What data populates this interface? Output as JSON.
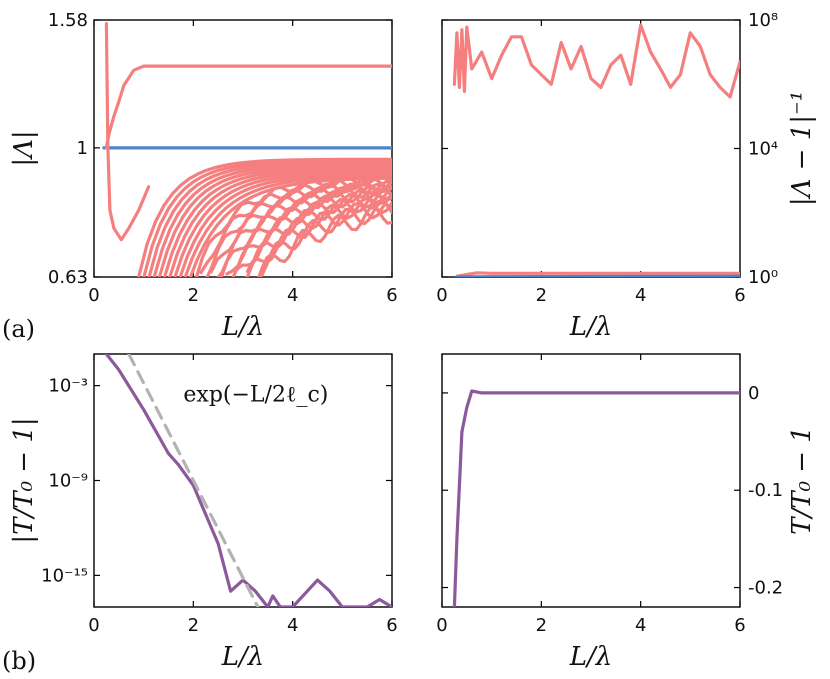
{
  "colors": {
    "red": "#F57F7F",
    "blue": "#4F83CC",
    "purple": "#8C5A9C",
    "gray": "#B3B3B3"
  },
  "labels": {
    "panel_a": "(a)",
    "panel_b": "(b)"
  },
  "chart_data": [
    {
      "id": "a-left",
      "type": "line",
      "xlabel": "L/λ",
      "ylabel": "|Λ|",
      "xlim": [
        0,
        6
      ],
      "ylim": [
        0.63,
        1.58
      ],
      "yscale": "log",
      "xticks": [
        0,
        2,
        4,
        6
      ],
      "xtick_labels": [
        "0",
        "2",
        "4",
        "6"
      ],
      "yticks": [
        0.63,
        1,
        1.58
      ],
      "ytick_labels": [
        "0.63",
        "1",
        "1.58"
      ],
      "series": [
        {
          "color": "blue",
          "x": [
            0.2,
            6.0
          ],
          "y": [
            1.0,
            1.0
          ]
        },
        {
          "color": "red",
          "x": [
            0.25,
            0.3,
            0.4,
            0.5,
            0.6,
            0.8,
            1.0,
            6.0
          ],
          "y": [
            1.0,
            1.05,
            1.12,
            1.18,
            1.25,
            1.32,
            1.34,
            1.34
          ]
        },
        {
          "color": "red",
          "x": [
            0.25,
            0.28,
            0.32,
            0.4,
            0.55,
            0.7,
            0.9,
            1.1
          ],
          "y": [
            1.56,
            1.0,
            0.8,
            0.75,
            0.72,
            0.75,
            0.8,
            0.87
          ]
        }
      ],
      "decay_bundle": {
        "color": "red",
        "count": 24,
        "x_start_range": [
          0.9,
          3.3
        ],
        "asymptote_range": [
          0.82,
          0.96
        ],
        "note_curves_start_at_bottom_and_rise_toward_asymptote": true
      }
    },
    {
      "id": "a-right",
      "type": "line",
      "xlabel": "L/λ",
      "ylabel": "|Λ − 1|⁻¹",
      "xlim": [
        0,
        6
      ],
      "ylim": [
        1,
        100000000
      ],
      "yscale": "log",
      "xticks": [
        0,
        2,
        4,
        6
      ],
      "xtick_labels": [
        "0",
        "2",
        "4",
        "6"
      ],
      "yticks": [
        1,
        10000,
        100000000
      ],
      "ytick_labels": [
        "10⁰",
        "10⁴",
        "10⁸"
      ],
      "series": [
        {
          "color": "red",
          "x": [
            0.25,
            0.3,
            0.35,
            0.4,
            0.45,
            0.5,
            0.6,
            0.8,
            1.0,
            1.2,
            1.4,
            1.6,
            1.8,
            2.0,
            2.2,
            2.4,
            2.6,
            2.8,
            3.0,
            3.2,
            3.4,
            3.6,
            3.8,
            4.0,
            4.2,
            4.4,
            4.6,
            4.8,
            5.0,
            5.2,
            5.4,
            5.6,
            5.8,
            6.0
          ],
          "y": [
            1000000,
            40000000,
            800000,
            50000000,
            600000,
            60000000,
            3000000,
            10000000,
            1500000,
            8000000,
            30000000,
            30000000,
            4000000,
            2000000,
            1000000,
            20000000,
            3000000,
            15000000,
            1500000,
            800000,
            4000000,
            8000000,
            1000000,
            70000000,
            10000000,
            3000000,
            800000,
            2000000,
            40000000,
            15000000,
            2000000,
            800000,
            400000,
            5000000
          ]
        },
        {
          "color": "red",
          "x": [
            0.3,
            0.5,
            0.7,
            1.0,
            6.0
          ],
          "y": [
            1.05,
            1.2,
            1.35,
            1.3,
            1.3
          ]
        },
        {
          "color": "blue",
          "x": [
            0.3,
            1.0,
            3.0,
            6.0
          ],
          "y": [
            1.0,
            1.02,
            1.04,
            1.06
          ]
        }
      ]
    },
    {
      "id": "b-left",
      "type": "line",
      "xlabel": "L/λ",
      "ylabel": "|T/T₀ − 1|",
      "xlim": [
        0,
        6
      ],
      "ylim": [
        1e-17,
        0.1
      ],
      "yscale": "log",
      "xticks": [
        0,
        2,
        4,
        6
      ],
      "xtick_labels": [
        "0",
        "2",
        "4",
        "6"
      ],
      "yticks": [
        0.001,
        1e-09,
        1e-15
      ],
      "ytick_labels": [
        "10⁻³",
        "10⁻⁹",
        "10⁻¹⁵"
      ],
      "annotations": [
        {
          "text": "exp(−L/2ℓ_c)",
          "x": 1.8,
          "y": 0.0001
        }
      ],
      "series": [
        {
          "color": "purple",
          "style": "solid",
          "x": [
            0.25,
            0.5,
            1.0,
            1.5,
            1.7,
            2.0,
            2.5,
            2.75,
            3.0,
            3.25,
            3.5,
            3.6,
            3.75,
            4.0,
            4.5,
            4.75,
            5.0,
            5.5,
            5.75,
            6.0
          ],
          "y": [
            0.1,
            0.01,
            3e-05,
            5e-08,
            1e-08,
            5e-10,
            1e-13,
            1e-16,
            5e-16,
            1e-16,
            1e-17,
            5e-17,
            1e-17,
            1e-17,
            5e-16,
            1e-16,
            1e-17,
            1e-17,
            3e-17,
            1e-17
          ]
        },
        {
          "color": "gray",
          "style": "dashed",
          "x": [
            0.7,
            3.3
          ],
          "y": [
            0.1,
            1e-17
          ]
        }
      ]
    },
    {
      "id": "b-right",
      "type": "line",
      "xlabel": "L/λ",
      "ylabel": "T/T₀ − 1",
      "xlim": [
        0,
        6
      ],
      "ylim": [
        -0.22,
        0.04
      ],
      "yscale": "linear",
      "xticks": [
        0,
        2,
        4,
        6
      ],
      "xtick_labels": [
        "0",
        "2",
        "4",
        "6"
      ],
      "yticks": [
        0,
        -0.1,
        -0.2
      ],
      "ytick_labels": [
        "0",
        "-0.1",
        "-0.2"
      ],
      "series": [
        {
          "color": "purple",
          "style": "solid",
          "x": [
            0.25,
            0.3,
            0.4,
            0.5,
            0.6,
            0.8,
            1.0,
            6.0
          ],
          "y": [
            -0.22,
            -0.15,
            -0.04,
            -0.015,
            0.002,
            0.0,
            0.0,
            0.0
          ]
        }
      ]
    }
  ]
}
